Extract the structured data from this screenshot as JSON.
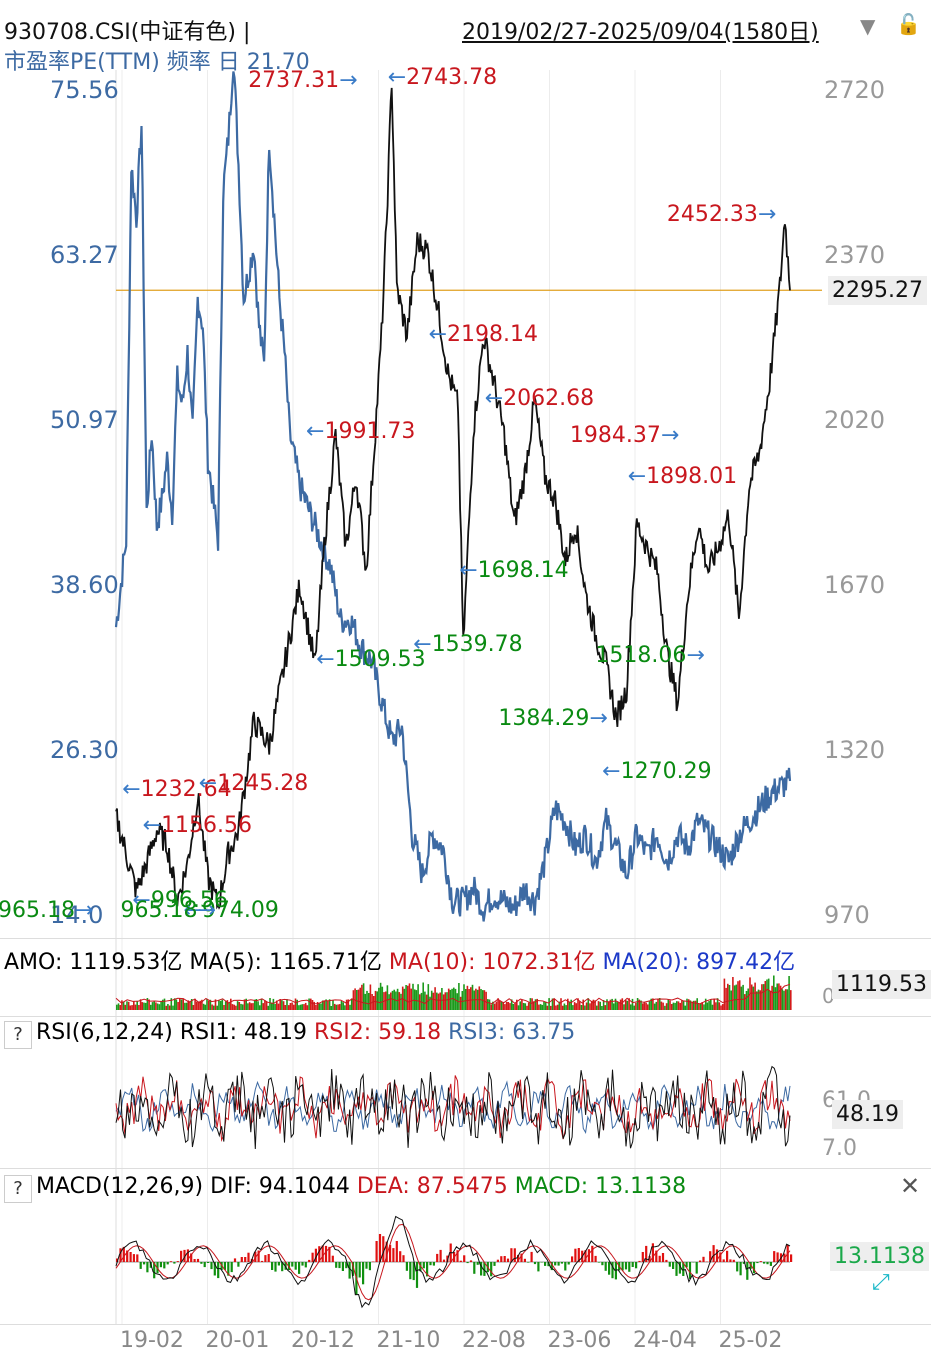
{
  "header": {
    "symbol": "930708.CSI(中证有色) |",
    "date_range": "2019/02/27-2025/09/04(1580日)",
    "indicator_label": "市盈率PE(TTM) 频率 日 21.70"
  },
  "colors": {
    "price": "#111111",
    "pe": "#3d6aa3",
    "red": "#c8171e",
    "green": "#0a8a12",
    "navy": "#1c39c8",
    "current_line": "#e0a020"
  },
  "chart_data": [
    {
      "type": "line",
      "name": "main",
      "left_axis_ticks": [
        "75.56",
        "63.27",
        "50.97",
        "38.60",
        "26.30",
        "14.0"
      ],
      "left_axis_range": [
        14.0,
        75.56
      ],
      "right_axis_ticks": [
        "2720",
        "2370",
        "2020",
        "1670",
        "1320",
        "970"
      ],
      "right_axis_range": [
        970,
        2720
      ],
      "current_value": "2295.27",
      "x_ticks": [
        "19-02",
        "20-01",
        "20-12",
        "21-10",
        "22-08",
        "23-06",
        "24-04",
        "25-02"
      ],
      "price_anchors": [
        [
          0,
          1180
        ],
        [
          2,
          1100
        ],
        [
          4,
          1020
        ],
        [
          6,
          1080
        ],
        [
          8,
          1150
        ],
        [
          10,
          1120
        ],
        [
          12,
          1000
        ],
        [
          14,
          1080
        ],
        [
          16,
          1220
        ],
        [
          18,
          1050
        ],
        [
          20,
          990
        ],
        [
          22,
          1100
        ],
        [
          24,
          1150
        ],
        [
          27,
          1380
        ],
        [
          30,
          1330
        ],
        [
          33,
          1500
        ],
        [
          36,
          1670
        ],
        [
          39,
          1500
        ],
        [
          41,
          1780
        ],
        [
          43,
          1990
        ],
        [
          45,
          1750
        ],
        [
          47,
          1900
        ],
        [
          49,
          1700
        ],
        [
          52,
          2200
        ],
        [
          53,
          2440
        ],
        [
          54,
          2744
        ],
        [
          55,
          2300
        ],
        [
          57,
          2200
        ],
        [
          59,
          2400
        ],
        [
          61,
          2380
        ],
        [
          63,
          2260
        ],
        [
          65,
          2120
        ],
        [
          67,
          2050
        ],
        [
          68,
          1540
        ],
        [
          70,
          2000
        ],
        [
          72,
          2198
        ],
        [
          74,
          2100
        ],
        [
          76,
          1990
        ],
        [
          78,
          1800
        ],
        [
          80,
          1900
        ],
        [
          82,
          2062
        ],
        [
          84,
          1900
        ],
        [
          86,
          1850
        ],
        [
          88,
          1720
        ],
        [
          90,
          1800
        ],
        [
          92,
          1650
        ],
        [
          94,
          1560
        ],
        [
          96,
          1500
        ],
        [
          98,
          1384
        ],
        [
          100,
          1450
        ],
        [
          102,
          1800
        ],
        [
          104,
          1750
        ],
        [
          106,
          1700
        ],
        [
          108,
          1520
        ],
        [
          110,
          1420
        ],
        [
          112,
          1650
        ],
        [
          114,
          1800
        ],
        [
          116,
          1700
        ],
        [
          118,
          1750
        ],
        [
          120,
          1820
        ],
        [
          122,
          1600
        ],
        [
          124,
          1880
        ],
        [
          126,
          1950
        ],
        [
          128,
          2100
        ],
        [
          130,
          2300
        ],
        [
          131,
          2452
        ],
        [
          132,
          2295
        ]
      ],
      "pe_anchors": [
        [
          0,
          35.5
        ],
        [
          2,
          42
        ],
        [
          3,
          70
        ],
        [
          4,
          66
        ],
        [
          5,
          73
        ],
        [
          6,
          44
        ],
        [
          7,
          50
        ],
        [
          8,
          43
        ],
        [
          9,
          45
        ],
        [
          10,
          48
        ],
        [
          11,
          44
        ],
        [
          12,
          54
        ],
        [
          13,
          52
        ],
        [
          14,
          56
        ],
        [
          15,
          50
        ],
        [
          16,
          60
        ],
        [
          17,
          58
        ],
        [
          18,
          48
        ],
        [
          19,
          45
        ],
        [
          20,
          42
        ],
        [
          21,
          68
        ],
        [
          22,
          72
        ],
        [
          23,
          78
        ],
        [
          24,
          70
        ],
        [
          25,
          60
        ],
        [
          26,
          62
        ],
        [
          27,
          64
        ],
        [
          28,
          58
        ],
        [
          29,
          55
        ],
        [
          30,
          72
        ],
        [
          31,
          66
        ],
        [
          32,
          60
        ],
        [
          33,
          56
        ],
        [
          34,
          50
        ],
        [
          35,
          48
        ],
        [
          36,
          46
        ],
        [
          38,
          44
        ],
        [
          40,
          42
        ],
        [
          42,
          40
        ],
        [
          44,
          36
        ],
        [
          46,
          36
        ],
        [
          48,
          34
        ],
        [
          50,
          33
        ],
        [
          52,
          30
        ],
        [
          54,
          27
        ],
        [
          56,
          28
        ],
        [
          58,
          20
        ],
        [
          60,
          17
        ],
        [
          62,
          20
        ],
        [
          64,
          19
        ],
        [
          66,
          15
        ],
        [
          68,
          15
        ],
        [
          70,
          16
        ],
        [
          72,
          14.5
        ],
        [
          74,
          15.5
        ],
        [
          76,
          15
        ],
        [
          78,
          14.5
        ],
        [
          80,
          16
        ],
        [
          82,
          15
        ],
        [
          84,
          18
        ],
        [
          86,
          22
        ],
        [
          88,
          21
        ],
        [
          90,
          19
        ],
        [
          92,
          20
        ],
        [
          94,
          18
        ],
        [
          96,
          21
        ],
        [
          98,
          19
        ],
        [
          100,
          17
        ],
        [
          102,
          20
        ],
        [
          104,
          18.5
        ],
        [
          106,
          20
        ],
        [
          108,
          18
        ],
        [
          110,
          20
        ],
        [
          112,
          19
        ],
        [
          114,
          21
        ],
        [
          116,
          20
        ],
        [
          118,
          19
        ],
        [
          120,
          18
        ],
        [
          122,
          20
        ],
        [
          124,
          21
        ],
        [
          126,
          22
        ],
        [
          128,
          23
        ],
        [
          130,
          23.5
        ],
        [
          132,
          24
        ]
      ],
      "price_annotations": [
        {
          "text": "2737.31",
          "color": "red",
          "value": 2737.31
        },
        {
          "text": "2743.78",
          "color": "red",
          "value": 2743.78
        },
        {
          "text": "2452.33",
          "color": "red",
          "value": 2452.33
        },
        {
          "text": "2198.14",
          "color": "red",
          "value": 2198.14
        },
        {
          "text": "2062.68",
          "color": "red",
          "value": 2062.68
        },
        {
          "text": "1991.73",
          "color": "red",
          "value": 1991.73
        },
        {
          "text": "1984.37",
          "color": "red",
          "value": 1984.37
        },
        {
          "text": "1898.01",
          "color": "red",
          "value": 1898.01
        },
        {
          "text": "1698.14",
          "color": "green",
          "value": 1698.14
        },
        {
          "text": "1509.53",
          "color": "green",
          "value": 1509.53
        },
        {
          "text": "1539.78",
          "color": "green",
          "value": 1539.78
        },
        {
          "text": "1518.06",
          "color": "green",
          "value": 1518.06
        },
        {
          "text": "1384.29",
          "color": "green",
          "value": 1384.29
        },
        {
          "text": "1270.29",
          "color": "green",
          "value": 1270.29
        },
        {
          "text": "1232.64",
          "color": "red",
          "value": 1232.64
        },
        {
          "text": "1245.28",
          "color": "red",
          "value": 1245.28
        },
        {
          "text": "1156.56",
          "color": "red",
          "value": 1156.56
        },
        {
          "text": "996.56",
          "color": "green",
          "value": 996.56
        },
        {
          "text": "965.18",
          "color": "green",
          "value": 965.18
        },
        {
          "text": "974.09",
          "color": "green",
          "value": 974.09
        },
        {
          "text": "965.18",
          "color": "green",
          "value": 965.18
        }
      ]
    },
    {
      "type": "bar",
      "name": "AMO",
      "legend": [
        {
          "text": "AMO: 1119.53亿",
          "color": "black"
        },
        {
          "text": "MA(5): 1165.71亿",
          "color": "black"
        },
        {
          "text": "MA(10): 1072.31亿",
          "color": "red"
        },
        {
          "text": "MA(20): 897.42亿",
          "color": "navy"
        }
      ],
      "current_value": "1119.53",
      "axis_label": "0"
    },
    {
      "type": "line",
      "name": "RSI",
      "legend": [
        {
          "text": "RSI(6,12,24)",
          "color": "black"
        },
        {
          "text": "RSI1: 48.19",
          "color": "black"
        },
        {
          "text": "RSI2: 59.18",
          "color": "red"
        },
        {
          "text": "RSI3: 63.75",
          "color": "blue"
        }
      ],
      "axis_ticks": [
        "61.0",
        "7.0"
      ],
      "current_value": "48.19"
    },
    {
      "type": "bar",
      "name": "MACD",
      "legend": [
        {
          "text": "MACD(12,26,9)",
          "color": "black"
        },
        {
          "text": "DIF: 94.1044",
          "color": "black"
        },
        {
          "text": "DEA: 87.5475",
          "color": "red"
        },
        {
          "text": "MACD: 13.1138",
          "color": "green"
        }
      ],
      "current_value": "13.1138"
    }
  ]
}
